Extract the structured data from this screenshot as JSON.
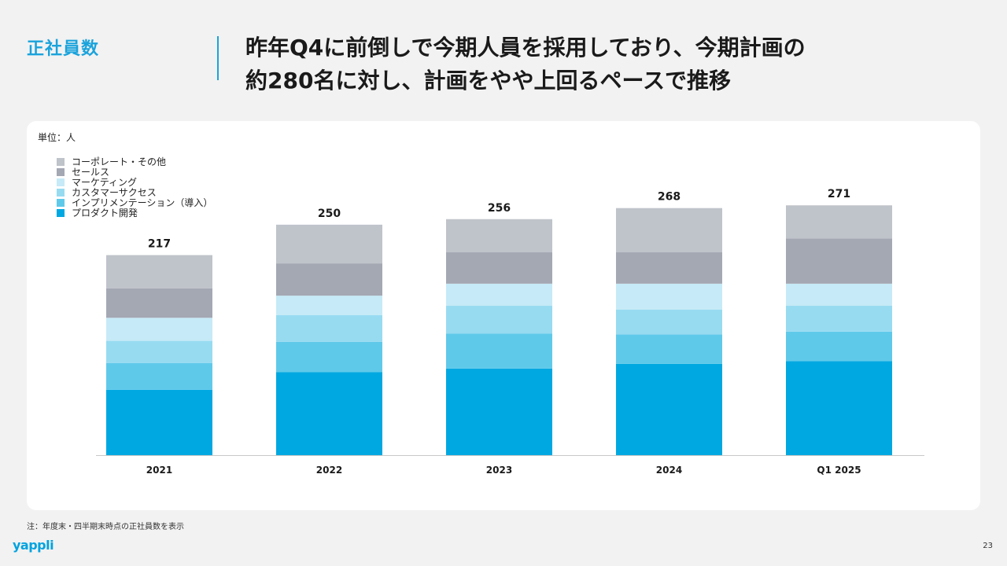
{
  "section_label": "正社員数",
  "headline": {
    "line1": "昨年Q4に前倒しで今期人員を採用しており、今期計画の",
    "line2": "約280名に対し、計画をやや上回るペースで推移"
  },
  "unit_label": "単位：人",
  "footnote": "注：年度末・四半期末時点の正社員数を表示",
  "logo": "yappli",
  "page_number": "23",
  "chart_data": {
    "type": "bar",
    "stacked": true,
    "categories": [
      "2021",
      "2022",
      "2023",
      "2024",
      "Q1 2025"
    ],
    "totals": [
      217,
      250,
      256,
      268,
      271
    ],
    "series": [
      {
        "name": "プロダクト開発",
        "color": "#00a8e1",
        "values": [
          71,
          90,
          94,
          99,
          102
        ]
      },
      {
        "name": "インプリメンテーション（導入）",
        "color": "#5fc9ea",
        "values": [
          29,
          33,
          38,
          32,
          32
        ]
      },
      {
        "name": "カスタマーサクセス",
        "color": "#97dbf1",
        "values": [
          24,
          29,
          30,
          27,
          28
        ]
      },
      {
        "name": "マーケティング",
        "color": "#c6eaf7",
        "values": [
          25,
          21,
          24,
          28,
          24
        ]
      },
      {
        "name": "セールス",
        "color": "#a4a8b3",
        "values": [
          32,
          35,
          34,
          34,
          49
        ]
      },
      {
        "name": "コーポレート・その他",
        "color": "#bfc3ca",
        "values": [
          36,
          42,
          36,
          48,
          36
        ]
      }
    ],
    "legend_order": [
      "コーポレート・その他",
      "セールス",
      "マーケティング",
      "カスタマーサクセス",
      "インプリメンテーション（導入）",
      "プロダクト開発"
    ],
    "legend_position": "top-left",
    "ylim": [
      0,
      300
    ],
    "grid": false
  }
}
